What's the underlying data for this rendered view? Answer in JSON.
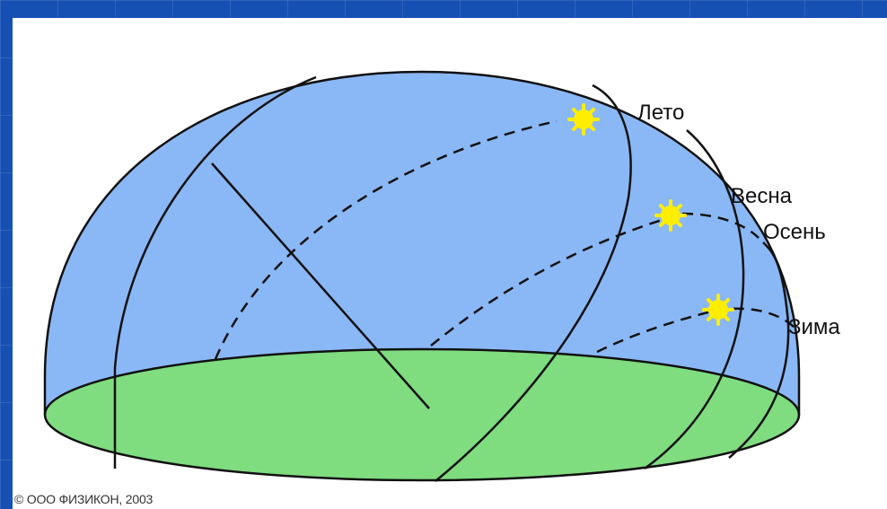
{
  "diagram": {
    "labels": {
      "summer": "Лето",
      "spring": "Весна",
      "autumn": "Осень",
      "winter": "Зима"
    },
    "copyright": "© ООО ФИЗИКОН, 2003"
  },
  "colors": {
    "frame": "#1750b3",
    "sky": "#8ab8f6",
    "ground": "#7fdc7f",
    "line": "#111111",
    "sun": "#ffee00"
  }
}
